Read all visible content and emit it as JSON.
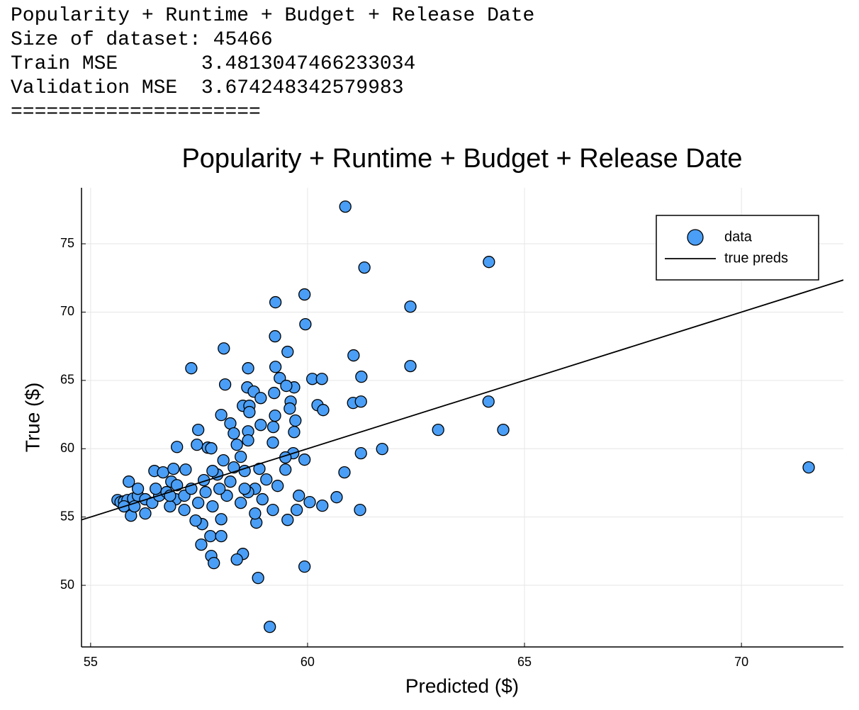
{
  "header": {
    "lines": [
      "Popularity + Runtime + Budget + Release Date",
      "Size of dataset: 45466",
      "Train MSE       3.4813047466233034",
      "Validation MSE  3.674248342579983",
      "====================="
    ]
  },
  "chart_data": {
    "type": "scatter",
    "title": "Popularity + Runtime + Budget + Release Date",
    "xlabel": "Predicted ($)",
    "ylabel": "True ($)",
    "xlim": [
      54.79,
      72.35
    ],
    "ylim": [
      45.49,
      79.1
    ],
    "xticks": [
      55,
      60,
      65,
      70
    ],
    "yticks": [
      50,
      55,
      60,
      65,
      70,
      75
    ],
    "grid": true,
    "legend": "top right",
    "series": [
      {
        "name": "data",
        "style": "markers",
        "color": "#4a9ef5",
        "x": [
          60.87,
          64.18,
          61.31,
          59.93,
          59.26,
          62.37,
          59.95,
          59.25,
          59.54,
          58.07,
          61.06,
          57.32,
          58.63,
          62.37,
          61.24,
          59.26,
          59.36,
          58.1,
          60.11,
          60.33,
          58.61,
          59.69,
          59.51,
          59.23,
          58.76,
          58.92,
          59.61,
          61.05,
          61.23,
          64.17,
          60.23,
          60.36,
          59.59,
          58.51,
          58.66,
          58.01,
          58.22,
          58.66,
          59.25,
          59.72,
          57.48,
          63.01,
          64.51,
          58.92,
          58.63,
          59.21,
          59.69,
          58.3,
          59.2,
          58.63,
          58.37,
          56.99,
          57.45,
          57.7,
          57.78,
          61.72,
          61.23,
          59.93,
          59.67,
          59.49,
          71.55,
          60.85,
          59.49,
          58.89,
          58.55,
          56.47,
          56.67,
          56.91,
          57.19,
          55.88,
          56.86,
          57.61,
          57.92,
          58.3,
          58.79,
          59.05,
          59.31,
          59.8,
          60.67,
          60.05,
          60.34,
          59.75,
          59.54,
          61.21,
          59.2,
          58.82,
          58.79,
          58.46,
          58.14,
          57.81,
          58.01,
          57.57,
          57.42,
          57.76,
          58.01,
          57.55,
          58.51,
          58.37,
          57.78,
          57.84,
          59.93,
          58.86,
          59.13,
          55.62,
          55.69,
          55.77,
          55.85,
          55.98,
          56.09,
          56.26,
          56.42,
          56.58,
          56.75,
          56.96,
          57.16,
          57.32,
          55.93,
          56.26,
          55.77,
          56.09,
          56.5,
          56.99,
          56.01,
          56.83,
          57.16,
          57.48,
          57.65,
          57.97,
          58.22,
          58.63,
          58.96,
          58.55,
          56.83,
          57.81,
          58.06,
          58.46
        ],
        "y": [
          77.72,
          73.67,
          73.26,
          71.29,
          70.72,
          70.4,
          69.11,
          68.23,
          67.09,
          67.34,
          66.83,
          65.89,
          65.89,
          66.05,
          65.27,
          65.99,
          65.17,
          64.7,
          65.11,
          65.11,
          64.49,
          64.49,
          64.6,
          64.08,
          64.18,
          63.71,
          63.45,
          63.35,
          63.45,
          63.45,
          63.19,
          62.83,
          62.94,
          63.14,
          63.14,
          62.47,
          61.85,
          62.68,
          62.42,
          62.06,
          61.38,
          61.38,
          61.38,
          61.74,
          61.27,
          61.59,
          61.22,
          61.12,
          60.45,
          60.61,
          60.29,
          60.13,
          60.29,
          60.08,
          60.03,
          59.98,
          59.67,
          59.2,
          59.67,
          59.36,
          58.63,
          58.27,
          58.47,
          58.53,
          58.37,
          58.37,
          58.27,
          58.53,
          58.47,
          57.59,
          57.59,
          57.7,
          58.11,
          58.63,
          57.07,
          57.75,
          57.28,
          56.56,
          56.45,
          56.09,
          55.83,
          55.52,
          54.79,
          55.52,
          55.52,
          54.59,
          55.26,
          56.04,
          56.56,
          55.78,
          54.84,
          54.48,
          54.74,
          53.6,
          53.6,
          52.98,
          52.3,
          51.89,
          52.15,
          51.63,
          51.37,
          50.54,
          46.96,
          56.24,
          56.09,
          56.14,
          56.24,
          56.35,
          56.56,
          56.3,
          56.04,
          56.56,
          56.82,
          56.3,
          56.56,
          57.07,
          55.1,
          55.26,
          55.78,
          57.07,
          57.07,
          57.33,
          55.78,
          55.78,
          55.52,
          56.04,
          56.82,
          57.07,
          57.59,
          56.82,
          56.3,
          57.07,
          56.56,
          58.37,
          59.15,
          59.41
        ]
      },
      {
        "name": "true preds",
        "style": "line",
        "color": "#000000",
        "x": [
          54.79,
          72.35
        ],
        "y": [
          54.79,
          72.35
        ]
      }
    ]
  }
}
